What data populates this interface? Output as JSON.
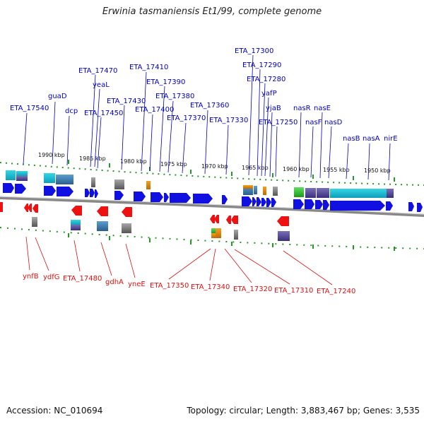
{
  "title": "Erwinia tasmaniensis Et1/99, complete genome",
  "footer": {
    "accession": "Accession: NC_010694",
    "summary": "Topology: circular; Length: 3,883,467 bp; Genes: 3,535"
  },
  "colors": {
    "forward": "#1010e0",
    "reverse": "#ee1111",
    "backbone": "#888888",
    "tick": "#229922"
  },
  "ticks": [
    "1990 kbp",
    "1985 kbp",
    "1980 kbp",
    "1975 kbp",
    "1970 kbp",
    "1965 kbp",
    "1960 kbp",
    "1955 kbp",
    "1950 kbp"
  ],
  "top_labels": [
    "ETA_17540",
    "guaD",
    "dcp",
    "ETA_17470",
    "yeaL",
    "ETA_17450",
    "ETA_17430",
    "ETA_17410",
    "ETA_17400",
    "ETA_17390",
    "ETA_17380",
    "ETA_17370",
    "ETA_17360",
    "ETA_17330",
    "ETA_17300",
    "ETA_17290",
    "ETA_17280",
    "yafP",
    "yjaB",
    "ETA_17250",
    "nasR",
    "nasF",
    "nasE",
    "nasD",
    "nasB",
    "nasA",
    "nirE"
  ],
  "bottom_labels": [
    "ynfB",
    "ydfG",
    "ETA_17480",
    "gdhA",
    "yneE",
    "ETA_17350",
    "ETA_17340",
    "ETA_17320",
    "ETA_17310",
    "ETA_17240"
  ]
}
